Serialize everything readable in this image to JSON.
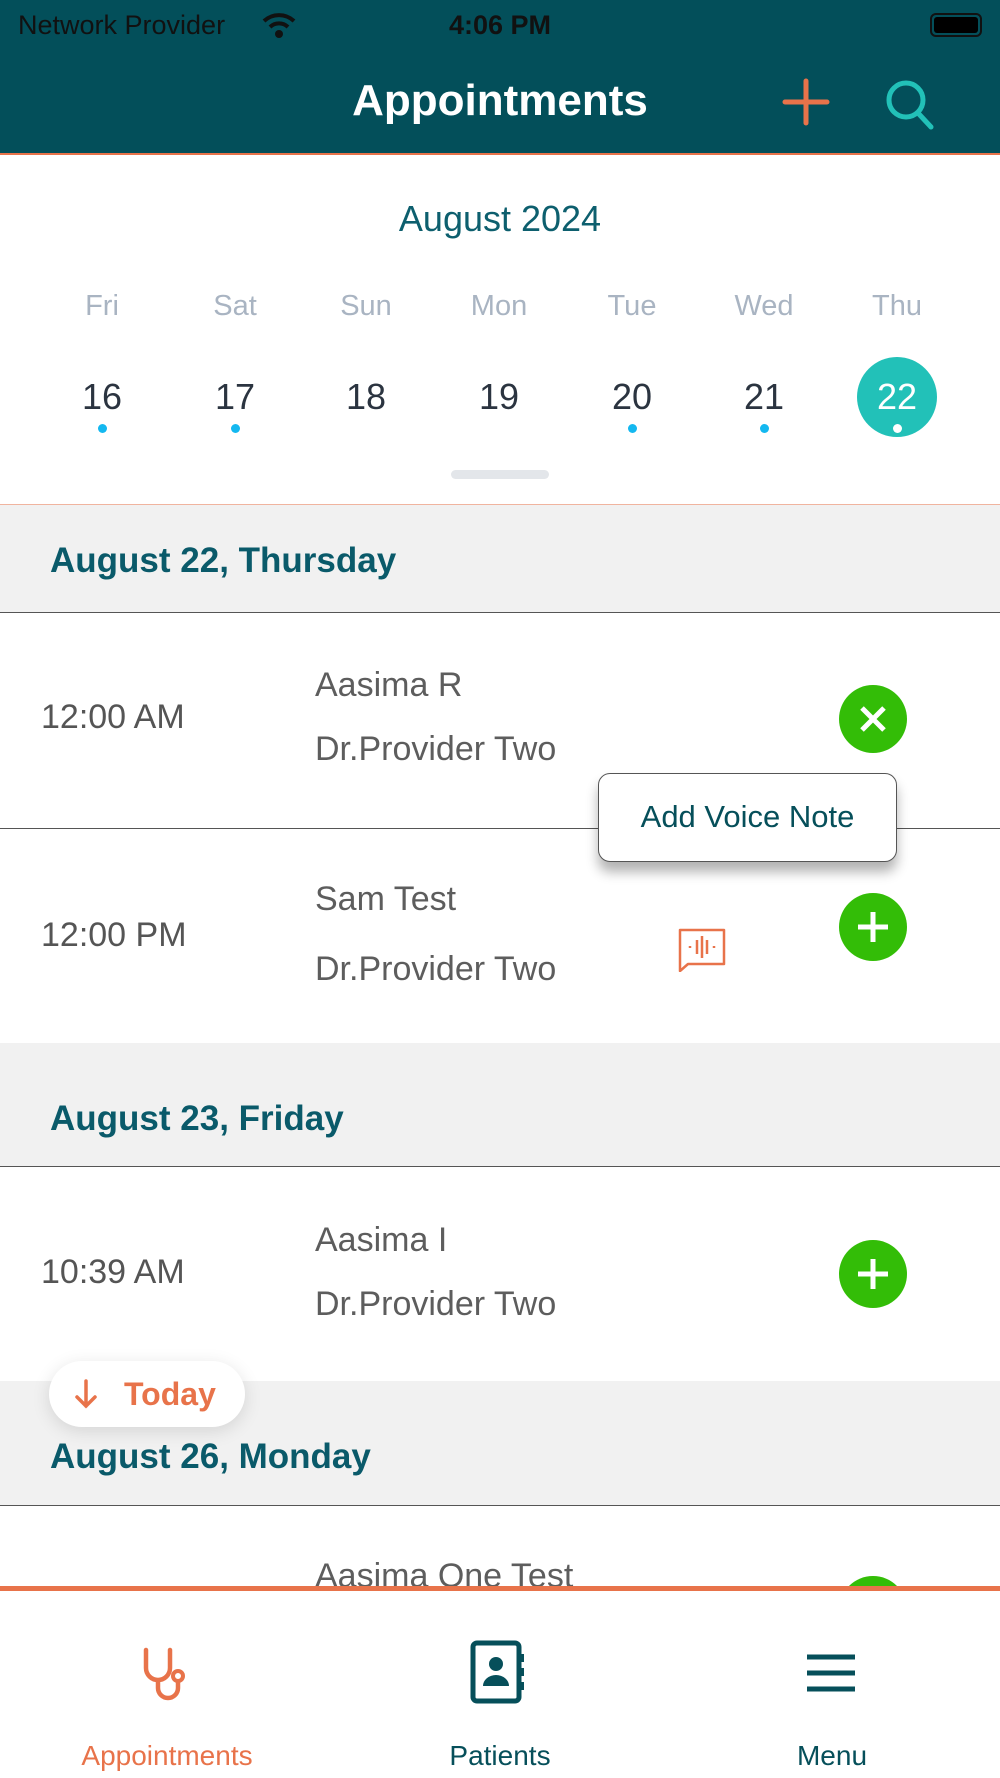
{
  "status_bar": {
    "carrier": "Network Provider",
    "time": "4:06 PM"
  },
  "header": {
    "title": "Appointments",
    "add_icon": "plus-icon",
    "search_icon": "search-icon"
  },
  "calendar": {
    "month": "August 2024",
    "days": [
      {
        "name": "Fri",
        "num": "16",
        "has_dot": true
      },
      {
        "name": "Sat",
        "num": "17",
        "has_dot": true
      },
      {
        "name": "Sun",
        "num": "18",
        "has_dot": false
      },
      {
        "name": "Mon",
        "num": "19",
        "has_dot": false
      },
      {
        "name": "Tue",
        "num": "20",
        "has_dot": true
      },
      {
        "name": "Wed",
        "num": "21",
        "has_dot": true
      },
      {
        "name": "Thu",
        "num": "22",
        "has_dot": true,
        "selected": true
      }
    ]
  },
  "sections": [
    {
      "title": "August 22, Thursday",
      "rows": [
        {
          "time": "12:00 AM",
          "patient": "Aasima  R",
          "provider": "Dr.Provider Two",
          "action": "close"
        },
        {
          "time": "12:00 PM",
          "patient": "Sam  Test",
          "provider": "Dr.Provider Two",
          "action": "add",
          "voice_note": true
        }
      ]
    },
    {
      "title": "August 23, Friday",
      "rows": [
        {
          "time": "10:39 AM",
          "patient": "Aasima  I",
          "provider": "Dr.Provider Two",
          "action": "add"
        }
      ]
    },
    {
      "title": "August 26, Monday",
      "rows": [
        {
          "patient": "Aasima One Test"
        }
      ]
    }
  ],
  "tooltip": "Add Voice Note",
  "today_button": "Today",
  "tabs": [
    {
      "label": "Appointments",
      "active": true
    },
    {
      "label": "Patients"
    },
    {
      "label": "Menu"
    }
  ],
  "colors": {
    "header": "#034f5a",
    "accent": "#e8734a",
    "teal": "#22c1b8",
    "green": "#33bd07"
  }
}
